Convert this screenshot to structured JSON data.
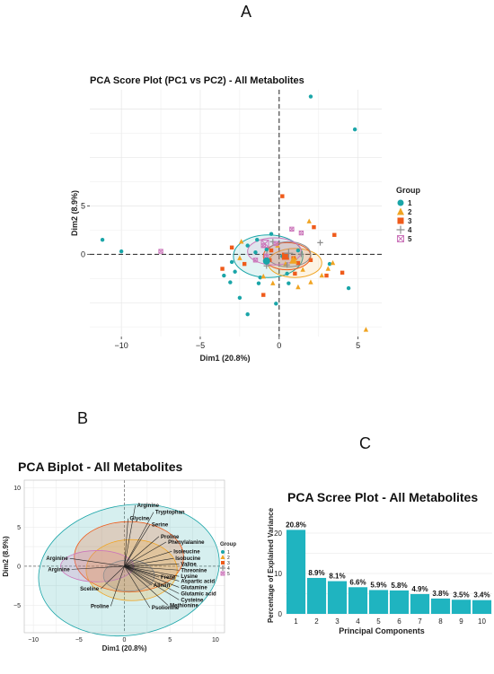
{
  "panels": {
    "a_letter": "A",
    "b_letter": "B",
    "c_letter": "C"
  },
  "chart_data": [
    {
      "type": "scatter",
      "title": "PCA Score Plot (PC1 vs PC2) - All Metabolites",
      "xlabel": "Dim1 (20.8%)",
      "ylabel": "Dim2 (8.9%)",
      "xlim": [
        -12,
        6.5
      ],
      "ylim": [
        -8.5,
        17
      ],
      "x_ticks": [
        -10,
        -5,
        0,
        5
      ],
      "y_ticks": [
        0,
        5
      ],
      "grid": true,
      "legend": {
        "title": "Group",
        "position": "right",
        "entries": [
          "1",
          "2",
          "3",
          "4",
          "5"
        ]
      },
      "colors": {
        "1": "#1aa5a8",
        "2": "#f0a422",
        "3": "#ef5b1b",
        "4": "#8e8e8e",
        "5": "#cc77bb"
      },
      "series": [
        {
          "name": "1",
          "shape": "circle",
          "points": [
            [
              -11.2,
              1.5
            ],
            [
              -10,
              0.3
            ],
            [
              2.0,
              16.3
            ],
            [
              4.8,
              12.9
            ],
            [
              -1.4,
              1.5
            ],
            [
              -2.0,
              0.9
            ],
            [
              -1.5,
              0.2
            ],
            [
              -0.8,
              -0.8
            ],
            [
              -3.5,
              -2.2
            ],
            [
              -3.0,
              -0.8
            ],
            [
              -2.5,
              -4.5
            ],
            [
              -2.0,
              -6.2
            ],
            [
              -1.3,
              -3.0
            ],
            [
              -0.2,
              -5.1
            ],
            [
              0.5,
              -2.0
            ],
            [
              1.2,
              0.4
            ],
            [
              -0.5,
              2.1
            ],
            [
              0.2,
              -0.2
            ],
            [
              -1.2,
              -2.4
            ],
            [
              0.6,
              -3.0
            ],
            [
              -2.8,
              -1.8
            ],
            [
              -3.1,
              -2.9
            ],
            [
              -0.8,
              0.5
            ],
            [
              4.4,
              -3.5
            ],
            [
              3.2,
              -1.0
            ]
          ]
        },
        {
          "name": "2",
          "shape": "triangle",
          "points": [
            [
              1.9,
              3.4
            ],
            [
              5.5,
              -7.8
            ],
            [
              0.4,
              -1.0
            ],
            [
              1.5,
              -1.6
            ],
            [
              -0.1,
              0.9
            ],
            [
              -2.5,
              -0.4
            ],
            [
              1.2,
              -3.4
            ],
            [
              2.0,
              -2.9
            ],
            [
              3.1,
              -1.5
            ],
            [
              3.4,
              -0.9
            ],
            [
              2.7,
              -2.2
            ],
            [
              -0.4,
              -3.0
            ],
            [
              1.0,
              -0.4
            ],
            [
              -1.0,
              -2.3
            ],
            [
              -2.4,
              1.3
            ]
          ]
        },
        {
          "name": "3",
          "shape": "square",
          "points": [
            [
              0.2,
              6.0
            ],
            [
              2.2,
              2.8
            ],
            [
              -3.0,
              0.7
            ],
            [
              -2.2,
              -1.0
            ],
            [
              -0.6,
              -0.6
            ],
            [
              -0.5,
              0.4
            ],
            [
              0.9,
              -0.4
            ],
            [
              3.0,
              -2.2
            ],
            [
              4.0,
              -1.9
            ],
            [
              -1.0,
              -4.2
            ],
            [
              1.0,
              -2.0
            ],
            [
              3.5,
              2.0
            ],
            [
              1.2,
              -0.9
            ],
            [
              -3.6,
              -1.5
            ],
            [
              2.0,
              -0.6
            ]
          ]
        },
        {
          "name": "4",
          "shape": "cross",
          "points": [
            [
              2.6,
              1.2
            ],
            [
              -0.4,
              1.3
            ],
            [
              1.4,
              0.0
            ],
            [
              -0.8,
              -1.2
            ],
            [
              0.5,
              -1.1
            ]
          ]
        },
        {
          "name": "5",
          "shape": "boxcross",
          "points": [
            [
              -7.5,
              0.3
            ],
            [
              0.8,
              2.6
            ],
            [
              1.4,
              2.2
            ],
            [
              -0.2,
              1.1
            ],
            [
              -1.0,
              0.9
            ],
            [
              -1.5,
              -0.6
            ],
            [
              -0.8,
              -0.2
            ]
          ]
        }
      ],
      "ellipses": [
        {
          "group": "1",
          "cx": -0.7,
          "cy": -0.2,
          "rx": 2.2,
          "ry": 2.2
        },
        {
          "group": "2",
          "cx": 1.0,
          "cy": -0.9,
          "rx": 1.7,
          "ry": 1.5
        },
        {
          "group": "3",
          "cx": 0.5,
          "cy": -0.2,
          "rx": 1.5,
          "ry": 1.4
        },
        {
          "group": "4",
          "cx": 0.6,
          "cy": 0.0,
          "rx": 1.4,
          "ry": 1.3
        },
        {
          "group": "5",
          "cx": -0.3,
          "cy": 0.3,
          "rx": 1.7,
          "ry": 1.4
        }
      ],
      "group_means": [
        {
          "group": "1",
          "x": -0.8,
          "y": -0.7
        },
        {
          "group": "2",
          "x": 0.9,
          "y": -0.6
        },
        {
          "group": "3",
          "x": 0.4,
          "y": -0.2
        },
        {
          "group": "4",
          "x": 0.6,
          "y": 0.1
        },
        {
          "group": "5",
          "x": -0.9,
          "y": 1.1
        }
      ]
    },
    {
      "type": "scatter",
      "title": "PCA Biplot - All Metabolites",
      "xlabel": "Dim1 (20.8%)",
      "ylabel": "Dim2 (8.9%)",
      "xlim": [
        -11,
        11
      ],
      "ylim": [
        -8.5,
        11
      ],
      "x_ticks": [
        -10,
        -5,
        0,
        5,
        10
      ],
      "y_ticks": [
        -5,
        0,
        5,
        10
      ],
      "grid": true,
      "legend": {
        "title": "Group",
        "position": "right",
        "entries": [
          "1",
          "2",
          "3",
          "4",
          "5"
        ]
      },
      "ellipses": [
        {
          "group": "1",
          "cx": 0.5,
          "cy": -0.5,
          "rx": 10.0,
          "ry": 8.3,
          "angle": 10
        },
        {
          "group": "3",
          "cx": 0.5,
          "cy": 1.2,
          "rx": 6.0,
          "ry": 4.5
        },
        {
          "group": "2",
          "cx": 0.8,
          "cy": -0.5,
          "rx": 5.0,
          "ry": 3.9
        },
        {
          "group": "5",
          "cx": -3.0,
          "cy": 0.0,
          "rx": 4.0,
          "ry": 2.0
        },
        {
          "group": "4",
          "cx": 0.5,
          "cy": -1.2,
          "rx": 2.8,
          "ry": 2.0
        }
      ],
      "loadings": [
        {
          "name": "Arginine",
          "x": 1.2,
          "y": 7.8
        },
        {
          "name": "Tryptophan",
          "x": 3.2,
          "y": 6.9
        },
        {
          "name": "Glycine",
          "x": 0.4,
          "y": 6.1
        },
        {
          "name": "Serine",
          "x": 2.8,
          "y": 5.3
        },
        {
          "name": "Proline",
          "x": 3.8,
          "y": 3.8
        },
        {
          "name": "Phenylalanine",
          "x": 4.6,
          "y": 3.1
        },
        {
          "name": "Isoleucine",
          "x": 5.2,
          "y": 1.9
        },
        {
          "name": "Isobucine",
          "x": 5.4,
          "y": 1.0
        },
        {
          "name": "Valine",
          "x": 6.0,
          "y": 0.3
        },
        {
          "name": "Threonine",
          "x": 6.0,
          "y": -0.5
        },
        {
          "name": "Lysine",
          "x": 6.0,
          "y": -1.3
        },
        {
          "name": "Aspartic acid",
          "x": 6.0,
          "y": -1.9
        },
        {
          "name": "Glutamine",
          "x": 6.0,
          "y": -2.7
        },
        {
          "name": "Glutamic acid",
          "x": 6.0,
          "y": -3.5
        },
        {
          "name": "Cysteine",
          "x": 6.0,
          "y": -4.3
        },
        {
          "name": "Methionine",
          "x": 4.8,
          "y": -5.0
        },
        {
          "name": "Psolionine",
          "x": 2.8,
          "y": -5.3
        },
        {
          "name": "Proline",
          "x": -1.5,
          "y": -5.1
        },
        {
          "name": "Sceline",
          "x": -2.6,
          "y": -2.9
        },
        {
          "name": "Aliniin",
          "x": 3.0,
          "y": -2.4
        },
        {
          "name": "Frene",
          "x": 3.8,
          "y": -1.4
        },
        {
          "name": "Arginine",
          "x": -6.0,
          "y": 1.0
        },
        {
          "name": "Arginine",
          "x": -5.8,
          "y": -0.4
        }
      ]
    },
    {
      "type": "bar",
      "title": "PCA Scree Plot - All Metabolites",
      "xlabel": "Principal Components",
      "ylabel": "Percentage of Explained Variance",
      "categories": [
        "1",
        "2",
        "3",
        "4",
        "5",
        "6",
        "7",
        "8",
        "9",
        "10"
      ],
      "values": [
        20.8,
        8.9,
        8.1,
        6.6,
        5.9,
        5.8,
        4.9,
        3.8,
        3.5,
        3.4
      ],
      "labels": [
        "20.8%",
        "8.9%",
        "8.1%",
        "6.6%",
        "5.9%",
        "5.8%",
        "4.9%",
        "3.8%",
        "3.5%",
        "3.4%"
      ],
      "ylim": [
        0,
        24
      ],
      "y_ticks": [
        0,
        10,
        20
      ],
      "color": "#1fb4c0",
      "grid": true
    }
  ]
}
